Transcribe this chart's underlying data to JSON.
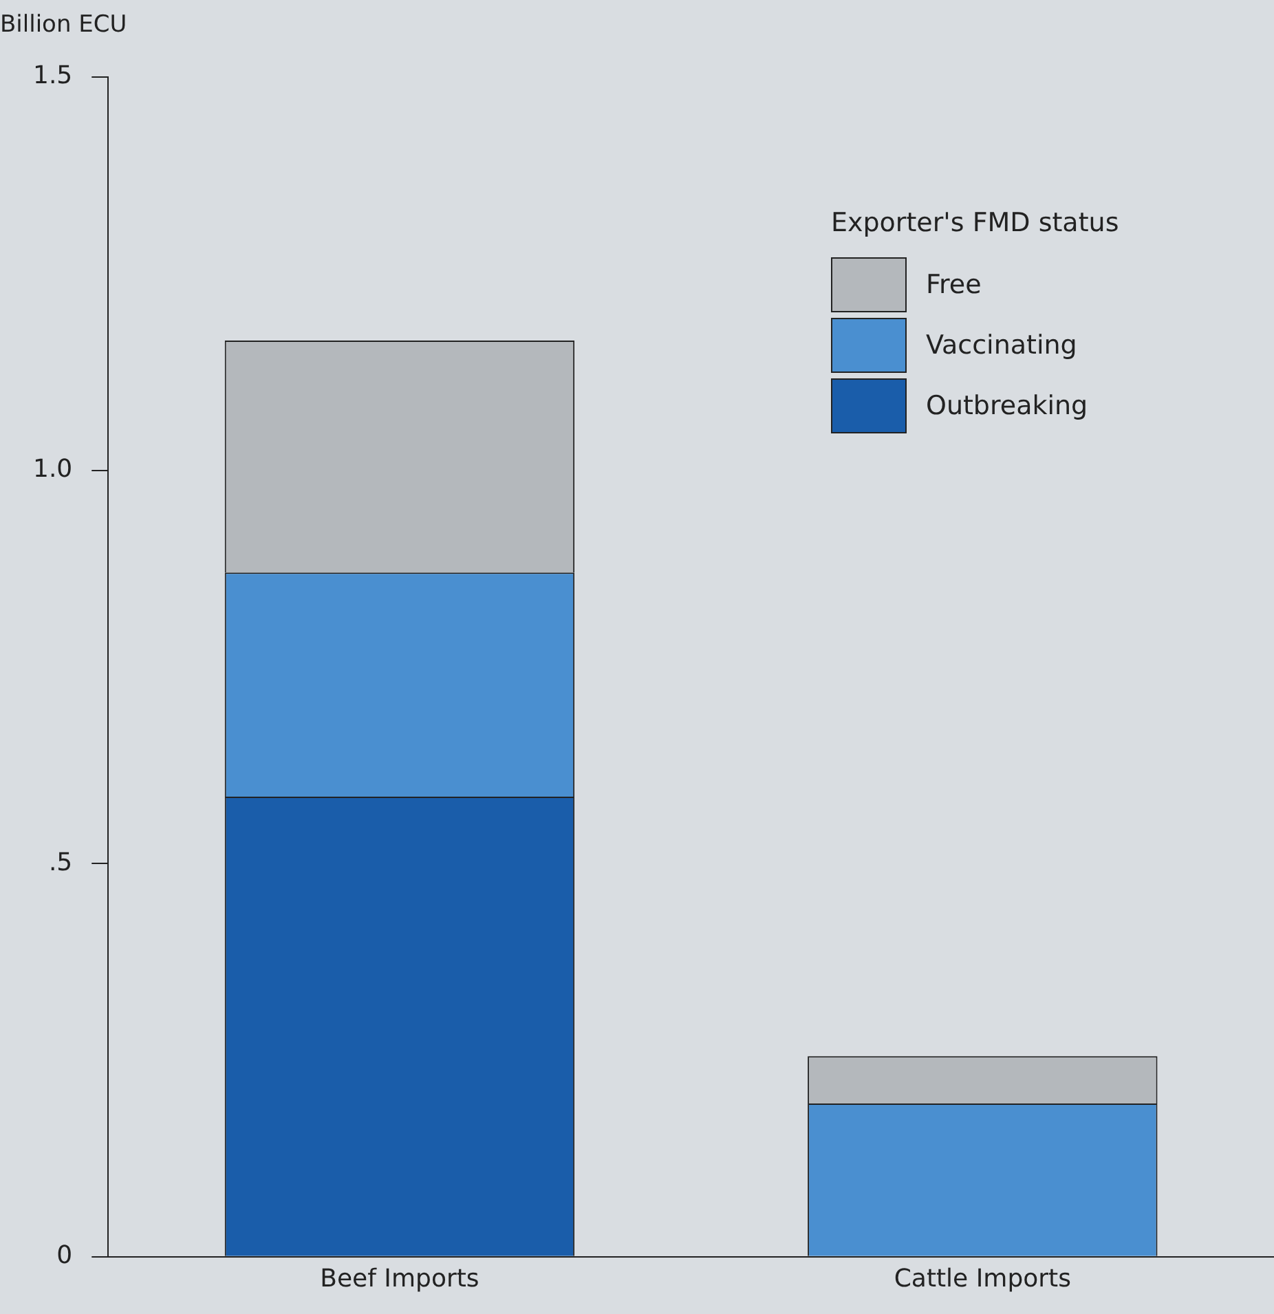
{
  "chart_data": {
    "type": "bar",
    "stacked": true,
    "ylabel": "Billion ECU",
    "legend_title": "Exporter's FMD status",
    "legend": "top right",
    "grid": false,
    "categories": [
      "Beef Imports",
      "Cattle Imports"
    ],
    "ylim": [
      0,
      1.5
    ],
    "yticks": [
      {
        "value": 0,
        "label": "0"
      },
      {
        "value": 0.5,
        "label": ".5"
      },
      {
        "value": 1,
        "label": "1.0"
      },
      {
        "value": 1.5,
        "label": "1.5"
      }
    ],
    "series": [
      {
        "name": "Outbreaking",
        "color": "#1a5daa",
        "values": [
          0.585,
          0
        ]
      },
      {
        "name": "Vaccinating",
        "color": "#4a8fd0",
        "values": [
          0.285,
          0.195
        ]
      },
      {
        "name": "Free",
        "color": "#b4b8bc",
        "values": [
          0.295,
          0.06
        ]
      }
    ]
  }
}
